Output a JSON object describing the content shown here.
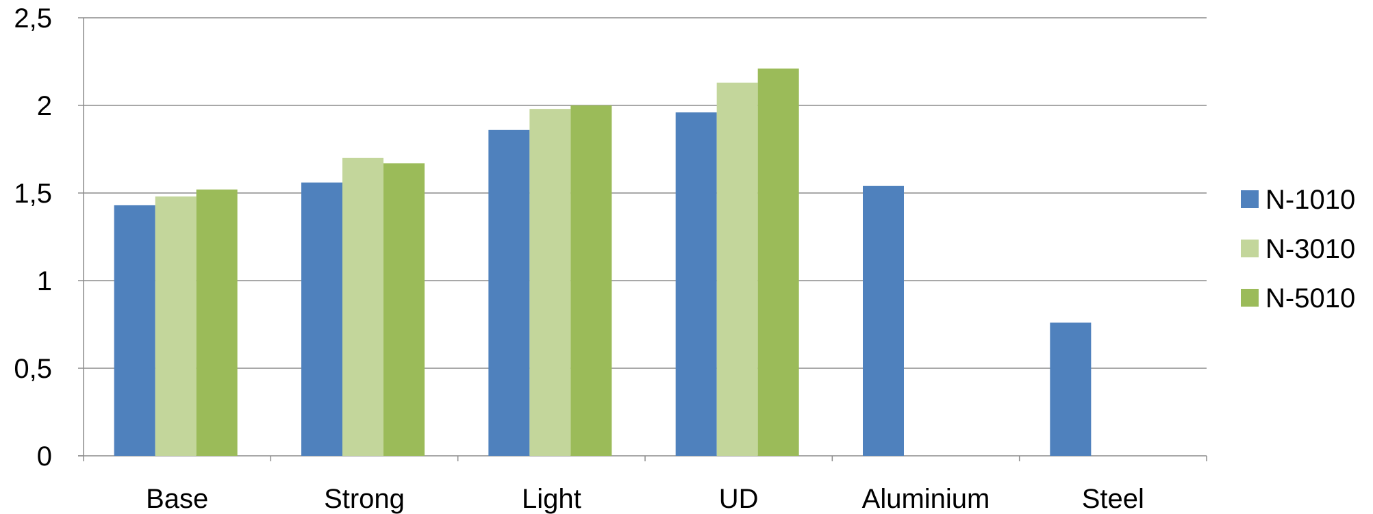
{
  "chart_data": {
    "type": "bar",
    "categories": [
      "Base",
      "Strong",
      "Light",
      "UD",
      "Aluminium",
      "Steel"
    ],
    "series": [
      {
        "name": "N-1010",
        "values": [
          1.43,
          1.56,
          1.86,
          1.96,
          1.54,
          0.76
        ]
      },
      {
        "name": "N-3010",
        "values": [
          1.48,
          1.7,
          1.98,
          2.13,
          null,
          null
        ]
      },
      {
        "name": "N-5010",
        "values": [
          1.52,
          1.67,
          2.0,
          2.21,
          null,
          null
        ]
      }
    ],
    "y_ticks": [
      "0",
      "0,5",
      "1",
      "1,5",
      "2",
      "2,5"
    ],
    "ylim": [
      0,
      2.5
    ],
    "y_tick_step": 0.5,
    "grid": true,
    "legend_position": "right",
    "colors": [
      "#4f81bd",
      "#c3d69b",
      "#9bbb59"
    ],
    "title": "",
    "xlabel": "",
    "ylabel": ""
  }
}
